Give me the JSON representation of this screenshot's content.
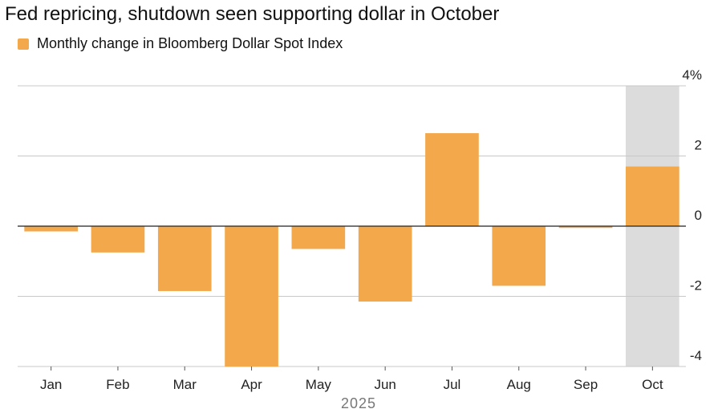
{
  "chart_data": {
    "type": "bar",
    "title": "Fed repricing, shutdown seen supporting dollar in October",
    "legend": [
      "Monthly change in Bloomberg Dollar Spot Index"
    ],
    "categories": [
      "Jan",
      "Feb",
      "Mar",
      "Apr",
      "May",
      "Jun",
      "Jul",
      "Aug",
      "Sep",
      "Oct"
    ],
    "series": [
      {
        "name": "Monthly change in Bloomberg Dollar Spot Index",
        "values": [
          -0.15,
          -0.75,
          -1.85,
          -4.0,
          -0.65,
          -2.15,
          2.65,
          -1.7,
          -0.05,
          1.7
        ]
      }
    ],
    "ylim": [
      -4,
      4
    ],
    "yticks": [
      4,
      2,
      0,
      -2,
      -4
    ],
    "ytick_labels": [
      "4%",
      "2",
      "0",
      "-2",
      "-4"
    ],
    "xlabel": "2025",
    "ylabel": "",
    "highlighted_category": "Oct",
    "colors": {
      "bar": "#f2a84b",
      "highlight": "#dcdcdc",
      "grid": "#c8c8c8",
      "zero": "#222222"
    }
  }
}
